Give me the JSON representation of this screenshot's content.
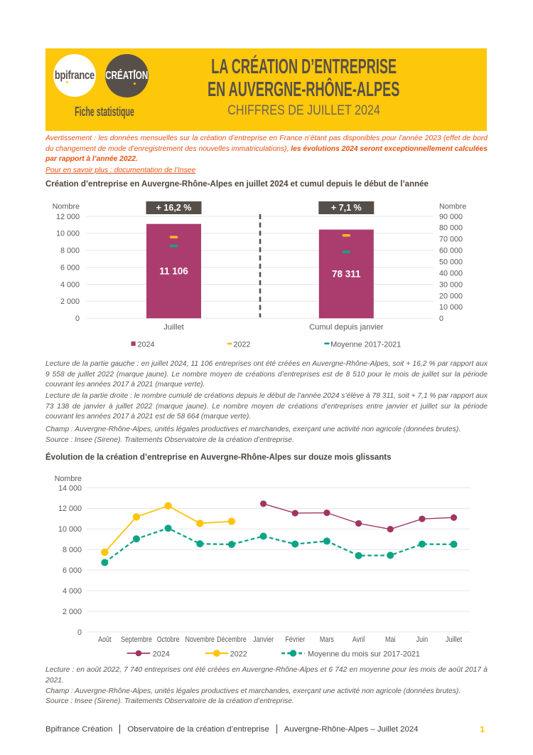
{
  "header": {
    "logo_bpifrance": "bpifrance",
    "logo_creation": "CRÉATION",
    "logo_subtitle": "Fiche statistique",
    "title_line1": "LA CRÉATION D’ENTREPRISE",
    "title_line2": "EN AUVERGNE-RHÔNE-ALPES",
    "subtitle": "CHIFFRES DE JUILLET 2024"
  },
  "notice": {
    "text_regular": "Avertissement : les données mensuelles sur la création d’entreprise en France n’étant pas disponibles pour l’année 2023 (effet de bord du changement de mode d’enregistrement des nouvelles immatriculations), ",
    "text_bold": "les évolutions 2024 seront exceptionnellement calculées par rapport à l’année 2022.",
    "link": "Pour en savoir plus : documentation de l’Insee"
  },
  "section1": {
    "title": "Création d’entreprise en Auvergne-Rhône-Alpes en juillet 2024 et cumul depuis le début de l’année",
    "lecture_left": "Lecture de la partie gauche : en juillet 2024, 11 106 entreprises ont été créées en Auvergne-Rhône-Alpes, soit + 16,2 % par rapport aux 9 558 de juillet 2022 (marque jaune). Le nombre moyen de créations d’entreprises est de 8 510 pour le mois de juillet sur la période couvrant les années 2017 à 2021 (marque verte).",
    "lecture_right": "Lecture de la partie droite : le nombre cumulé de créations depuis le début de l’année 2024 s’élève à 78 311, soit + 7,1 % par rapport aux 73 138 de janvier à juillet 2022 (marque jaune). Le nombre moyen de créations d’entreprises entre janvier et juillet sur la période couvrant les années 2017 à 2021 est de 58 664 (marque verte).",
    "champ": "Champ : Auvergne-Rhône-Alpes, unités légales productives et marchandes, exerçant une activité non agricole (données brutes).",
    "source": "Source : Insee (Sirene). Traitements Observatoire de la création d’entreprise."
  },
  "section2": {
    "title": "Évolution de la création d’entreprise en Auvergne-Rhône-Alpes sur douze mois glissants",
    "lecture": "Lecture : en août 2022, 7 740 entreprises ont été créées en Auvergne-Rhône-Alpes et 6 742 en moyenne pour les mois de août 2017 à 2021.",
    "champ": "Champ : Auvergne-Rhône-Alpes, unités légales productives et marchandes, exerçant une activité non agricole (données brutes).",
    "source": "Source : Insee (Sirene). Traitements Observatoire de la création d’entreprise."
  },
  "footer": {
    "items": [
      "Bpifrance Création",
      "Observatoire de la création d’entreprise",
      "Auvergne-Rhône-Alpes – Juillet 2024"
    ],
    "page_number": "1"
  },
  "colors": {
    "banner_yellow": "#FDC70A",
    "dark_brown": "#57504A",
    "orange": "#E8500F",
    "magenta": "#AA3D6D",
    "marker_yellow": "#FCB526",
    "marker_teal": "#18A08E",
    "line_magenta": "#A23560",
    "line_yellow": "#FCC50B",
    "line_teal": "#0CA485",
    "axis_gray": "#595959",
    "grid_gray": "#E6E6E6",
    "badge_bg": "#564E48",
    "page_number_yellow": "#FCC200"
  },
  "chart_data": [
    {
      "type": "bar",
      "title": "Création d’entreprise en Auvergne-Rhône-Alpes en juillet 2024 et cumul depuis le début de l’année",
      "axis_left": {
        "label": "Nombre",
        "min": 0,
        "max": 12000,
        "step": 2000
      },
      "axis_right": {
        "label": "Nombre",
        "min": 0,
        "max": 90000,
        "step": 10000
      },
      "categories": [
        "Juillet",
        "Cumul depuis janvier"
      ],
      "category_axis": [
        "left",
        "right"
      ],
      "badges": [
        "+ 16,2 %",
        "+ 7,1 %"
      ],
      "bar_labels": [
        "11 106",
        "78 311"
      ],
      "series": [
        {
          "name": "2024",
          "role": "bar",
          "values": [
            11106,
            78311
          ]
        },
        {
          "name": "2022",
          "role": "tick-yellow",
          "values": [
            9558,
            73138
          ]
        },
        {
          "name": "Moyenne 2017-2021",
          "role": "tick-teal",
          "values": [
            8510,
            58664
          ]
        }
      ],
      "legend": [
        "2024",
        "2022",
        "Moyenne 2017-2021"
      ],
      "grid": true,
      "legend_position": "bottom"
    },
    {
      "type": "line",
      "title": "Évolution de la création d’entreprise en Auvergne-Rhône-Alpes sur douze mois glissants",
      "axis_left": {
        "label": "Nombre",
        "min": 0,
        "max": 14000,
        "step": 2000
      },
      "categories": [
        "Août",
        "Septembre",
        "Octobre",
        "Novembre",
        "Décembre",
        "Janvier",
        "Février",
        "Mars",
        "Avril",
        "Mai",
        "Juin",
        "Juillet"
      ],
      "series": [
        {
          "name": "2024",
          "style": "solid",
          "color_key": "magenta",
          "values": [
            null,
            null,
            null,
            null,
            null,
            12450,
            11540,
            11570,
            10540,
            9980,
            10980,
            11106
          ]
        },
        {
          "name": "2022",
          "style": "solid",
          "color_key": "yellow",
          "values": [
            7740,
            11170,
            12250,
            10550,
            10740,
            null,
            null,
            null,
            null,
            null,
            null,
            null
          ]
        },
        {
          "name": "Moyenne du mois sur 2017-2021",
          "style": "dashed",
          "color_key": "teal",
          "values": [
            6742,
            9040,
            10070,
            8560,
            8500,
            9300,
            8530,
            8820,
            7410,
            7440,
            8530,
            8510
          ]
        }
      ],
      "legend": [
        "2024",
        "2022",
        "Moyenne du mois sur 2017-2021"
      ],
      "grid": true,
      "legend_position": "bottom"
    }
  ]
}
